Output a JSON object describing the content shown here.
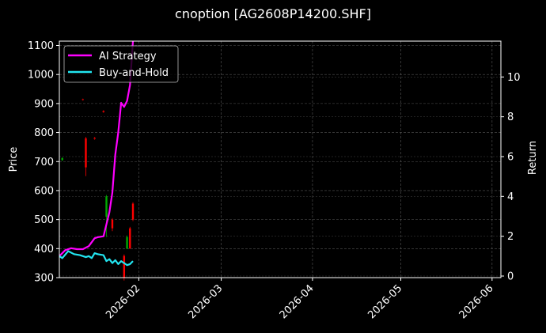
{
  "chart_data": {
    "type": "line",
    "title": "cnoption [AG2608P14200.SHF]",
    "xlabel": "",
    "ylabel": "Price",
    "ylabel_right": "Return",
    "ylim": [
      300,
      1115
    ],
    "ylim_right": [
      0,
      11.8
    ],
    "yticks": [
      300,
      400,
      500,
      600,
      700,
      800,
      900,
      1000,
      1100
    ],
    "yticks_right": [
      0,
      2,
      4,
      6,
      8,
      10
    ],
    "xticks": [
      "2026-02",
      "2026-03",
      "2026-04",
      "2026-05",
      "2026-06"
    ],
    "xlim": [
      "2026-01-05",
      "2026-06-04"
    ],
    "grid": true,
    "legend_position": "upper left",
    "legend": [
      "AI Strategy",
      "Buy-and-Hold"
    ],
    "series": [
      {
        "name": "AI Strategy",
        "axis": "right",
        "color": "#ff00ff",
        "x": [
          "2026-01-05",
          "2026-01-07",
          "2026-01-09",
          "2026-01-11",
          "2026-01-13",
          "2026-01-15",
          "2026-01-17",
          "2026-01-18",
          "2026-01-20",
          "2026-01-22",
          "2026-01-23",
          "2026-01-24",
          "2026-01-25",
          "2026-01-26",
          "2026-01-27",
          "2026-01-28",
          "2026-01-29",
          "2026-01-30"
        ],
        "values": [
          1.0,
          1.3,
          1.4,
          1.35,
          1.35,
          1.5,
          1.9,
          1.95,
          2.0,
          3.2,
          4.2,
          6.1,
          7.2,
          8.7,
          8.5,
          8.8,
          9.6,
          11.8
        ]
      },
      {
        "name": "Buy-and-Hold",
        "axis": "right",
        "color": "#22e5f0",
        "x": [
          "2026-01-05",
          "2026-01-06",
          "2026-01-08",
          "2026-01-10",
          "2026-01-12",
          "2026-01-14",
          "2026-01-15",
          "2026-01-16",
          "2026-01-17",
          "2026-01-18",
          "2026-01-20",
          "2026-01-21",
          "2026-01-22",
          "2026-01-23",
          "2026-01-24",
          "2026-01-25",
          "2026-01-26",
          "2026-01-27",
          "2026-01-28",
          "2026-01-29",
          "2026-01-30"
        ],
        "values": [
          1.0,
          0.9,
          1.25,
          1.1,
          1.05,
          0.95,
          1.0,
          0.9,
          1.15,
          1.1,
          1.05,
          0.75,
          0.85,
          0.65,
          0.8,
          0.6,
          0.75,
          0.65,
          0.55,
          0.6,
          0.75
        ]
      }
    ],
    "candles": [
      {
        "date": "2026-01-06",
        "open": 712,
        "close": 705,
        "high": 715,
        "low": 702,
        "color": "#00aa00"
      },
      {
        "date": "2026-01-13",
        "open": 915,
        "close": 912,
        "high": 917,
        "low": 910,
        "color": "#cc0000"
      },
      {
        "date": "2026-01-14",
        "open": 780,
        "close": 680,
        "high": 785,
        "low": 650,
        "color": "#ff0000"
      },
      {
        "date": "2026-01-17",
        "open": 782,
        "close": 778,
        "high": 785,
        "low": 775,
        "color": "#cc0000"
      },
      {
        "date": "2026-01-20",
        "open": 875,
        "close": 870,
        "high": 877,
        "low": 868,
        "color": "#cc0000"
      },
      {
        "date": "2026-01-21",
        "open": 580,
        "close": 510,
        "high": 585,
        "low": 440,
        "color": "#00aa00"
      },
      {
        "date": "2026-01-23",
        "open": 500,
        "close": 470,
        "high": 505,
        "low": 460,
        "color": "#ff0000"
      },
      {
        "date": "2026-01-27",
        "open": 375,
        "close": 300,
        "high": 380,
        "low": 290,
        "color": "#ff0000"
      },
      {
        "date": "2026-01-28",
        "open": 440,
        "close": 400,
        "high": 445,
        "low": 398,
        "color": "#00aa00"
      },
      {
        "date": "2026-01-29",
        "open": 470,
        "close": 400,
        "high": 475,
        "low": 400,
        "color": "#ff0000"
      },
      {
        "date": "2026-01-30",
        "open": 555,
        "close": 500,
        "high": 560,
        "low": 495,
        "color": "#ff0000"
      }
    ]
  }
}
